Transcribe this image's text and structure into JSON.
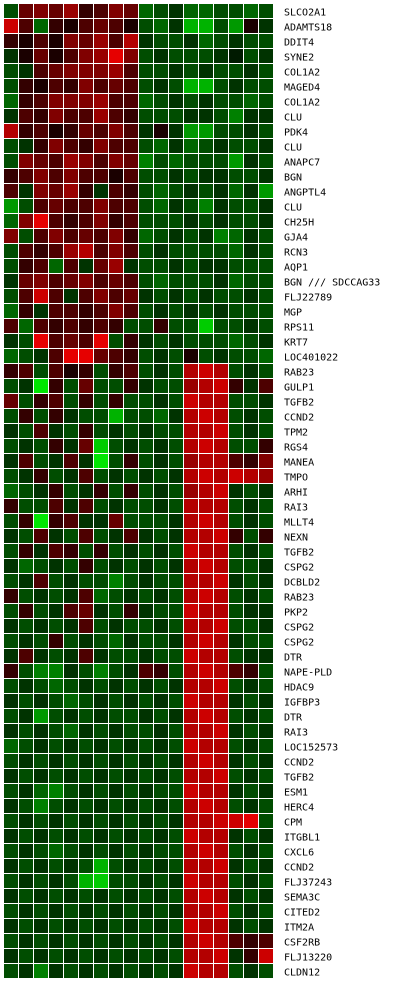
{
  "chart_data": {
    "type": "heatmap",
    "title": "",
    "xlabel": "",
    "ylabel": "",
    "columns": 18,
    "rows": [
      "SLCO2A1",
      "ADAMTS18",
      "DDIT4",
      "SYNE2",
      "COL1A2",
      "MAGED4",
      "COL1A2",
      "CLU",
      "PDK4",
      "CLU",
      "ANAPC7",
      "BGN",
      "ANGPTL4",
      "CLU",
      "CH25H",
      "GJA4",
      "RCN3",
      "AQP1",
      "BGN /// SDCCAG33",
      "FLJ22789",
      "MGP",
      "RPS11",
      "KRT7",
      "LOC401022",
      "RAB23",
      "GULP1",
      "TGFB2",
      "CCND2",
      "TPM2",
      "RGS4",
      "MANEA",
      "TMPO",
      "ARHI",
      "RAI3",
      "MLLT4",
      "NEXN",
      "TGFB2",
      "CSPG2",
      "DCBLD2",
      "RAB23",
      "PKP2",
      "CSPG2",
      "CSPG2",
      "DTR",
      "NAPE-PLD",
      "HDAC9",
      "IGFBP3",
      "DTR",
      "RAI3",
      "LOC152573",
      "CCND2",
      "TGFB2",
      "ESM1",
      "HERC4",
      "CPM",
      "ITGBL1",
      "CXCL6",
      "CCND2",
      "FLJ37243",
      "SEMA3C",
      "CITED2",
      "ITM2A",
      "CSF2RB",
      "FLJ13220",
      "CLDN12"
    ],
    "value_range": [
      -1,
      1
    ],
    "color_scale": {
      "negative": "#00ff00",
      "zero": "#000000",
      "positive": "#ff0000"
    },
    "grid": true,
    "values": [
      [
        -0.3,
        0.4,
        0.5,
        0.4,
        0.6,
        0.2,
        0.3,
        0.5,
        0.4,
        -0.4,
        -0.3,
        -0.2,
        -0.4,
        -0.4,
        -0.3,
        -0.3,
        -0.4,
        -0.3
      ],
      [
        0.8,
        0.3,
        -0.4,
        0.2,
        0.1,
        0.3,
        0.4,
        0.3,
        0.1,
        -0.3,
        -0.4,
        -0.2,
        -0.7,
        -0.7,
        -0.3,
        -0.6,
        0.1,
        -0.2
      ],
      [
        0.2,
        0.1,
        0.3,
        0.1,
        0.5,
        0.4,
        0.6,
        0.3,
        0.7,
        -0.2,
        -0.3,
        -0.3,
        -0.2,
        -0.4,
        -0.3,
        -0.2,
        -0.3,
        -0.3
      ],
      [
        -0.2,
        0.1,
        0.4,
        0.1,
        0.3,
        0.5,
        0.6,
        0.9,
        0.5,
        -0.3,
        -0.2,
        -0.3,
        -0.3,
        -0.3,
        -0.2,
        -0.1,
        -0.3,
        -0.2
      ],
      [
        -0.3,
        -0.2,
        0.3,
        0.4,
        0.5,
        0.5,
        0.5,
        0.6,
        0.3,
        -0.3,
        -0.3,
        -0.2,
        -0.3,
        -0.2,
        -0.3,
        -0.3,
        -0.2,
        -0.3
      ],
      [
        -0.3,
        0.2,
        0.1,
        0.3,
        0.2,
        0.5,
        0.3,
        0.4,
        0.3,
        -0.3,
        -0.2,
        -0.3,
        -0.7,
        -0.7,
        -0.3,
        -0.2,
        -0.3,
        -0.3
      ],
      [
        -0.4,
        0.2,
        0.3,
        0.5,
        0.5,
        0.5,
        0.6,
        0.3,
        0.3,
        -0.4,
        -0.3,
        -0.2,
        -0.3,
        -0.2,
        -0.3,
        -0.3,
        -0.4,
        -0.3
      ],
      [
        -0.2,
        0.3,
        0.2,
        0.5,
        0.3,
        0.3,
        0.6,
        0.3,
        0.2,
        -0.3,
        -0.3,
        -0.3,
        -0.2,
        -0.2,
        -0.3,
        -0.5,
        -0.2,
        -0.2
      ],
      [
        0.7,
        0.2,
        0.3,
        0.1,
        0.2,
        0.4,
        0.3,
        0.5,
        0.3,
        -0.2,
        0.1,
        -0.2,
        -0.6,
        -0.6,
        -0.3,
        -0.3,
        -0.2,
        -0.3
      ],
      [
        -0.3,
        -0.2,
        0.2,
        0.5,
        0.3,
        0.2,
        0.5,
        0.3,
        0.3,
        -0.3,
        -0.4,
        -0.2,
        -0.4,
        -0.3,
        -0.2,
        -0.3,
        -0.3,
        -0.2
      ],
      [
        -0.3,
        0.5,
        0.4,
        0.3,
        0.6,
        0.5,
        0.3,
        0.5,
        0.4,
        -0.5,
        -0.3,
        -0.4,
        -0.3,
        -0.3,
        -0.3,
        -0.6,
        -0.2,
        -0.3
      ],
      [
        0.2,
        0.3,
        0.5,
        0.3,
        0.5,
        0.3,
        0.3,
        0.1,
        0.3,
        -0.3,
        -0.3,
        -0.2,
        -0.3,
        -0.2,
        -0.2,
        -0.3,
        -0.3,
        -0.2
      ],
      [
        0.3,
        -0.2,
        0.5,
        0.4,
        0.6,
        0.2,
        -0.2,
        0.3,
        0.2,
        -0.3,
        -0.4,
        -0.3,
        -0.2,
        -0.3,
        -0.2,
        -0.4,
        -0.2,
        -0.6
      ],
      [
        -0.6,
        -0.3,
        0.3,
        0.4,
        0.3,
        0.3,
        0.5,
        0.3,
        0.3,
        -0.3,
        -0.4,
        -0.2,
        -0.3,
        -0.5,
        -0.2,
        -0.3,
        -0.3,
        -0.2
      ],
      [
        -0.4,
        0.5,
        0.9,
        0.3,
        0.2,
        0.3,
        0.5,
        0.2,
        0.3,
        -0.3,
        -0.3,
        -0.3,
        -0.2,
        -0.3,
        -0.2,
        -0.3,
        -0.3,
        -0.2
      ],
      [
        0.5,
        -0.3,
        0.3,
        0.5,
        0.3,
        0.4,
        0.3,
        0.5,
        0.2,
        -0.4,
        -0.3,
        -0.2,
        -0.3,
        -0.2,
        -0.5,
        -0.4,
        -0.2,
        -0.3
      ],
      [
        -0.3,
        0.3,
        0.2,
        0.3,
        0.6,
        0.7,
        0.3,
        0.5,
        0.3,
        -0.3,
        -0.2,
        -0.3,
        -0.3,
        -0.3,
        -0.3,
        -0.4,
        -0.2,
        -0.3
      ],
      [
        -0.3,
        0.2,
        0.3,
        -0.4,
        0.3,
        -0.2,
        0.4,
        0.6,
        -0.2,
        -0.3,
        -0.3,
        -0.2,
        -0.3,
        -0.2,
        -0.2,
        -0.3,
        -0.3,
        -0.3
      ],
      [
        -0.2,
        0.4,
        0.5,
        0.3,
        0.4,
        0.5,
        0.3,
        0.4,
        0.3,
        -0.3,
        -0.4,
        -0.3,
        -0.3,
        -0.3,
        -0.2,
        -0.4,
        -0.3,
        -0.3
      ],
      [
        -0.3,
        0.3,
        0.8,
        0.3,
        -0.2,
        0.3,
        0.5,
        0.3,
        0.4,
        -0.2,
        -0.3,
        -0.2,
        -0.3,
        -0.2,
        -0.3,
        -0.3,
        -0.2,
        -0.3
      ],
      [
        -0.4,
        0.2,
        -0.2,
        0.3,
        0.3,
        0.2,
        0.3,
        0.5,
        0.3,
        -0.3,
        -0.2,
        -0.3,
        -0.2,
        -0.3,
        -0.2,
        -0.3,
        -0.3,
        -0.3
      ],
      [
        0.3,
        -0.4,
        0.3,
        0.2,
        0.3,
        0.2,
        0.3,
        0.2,
        -0.3,
        -0.3,
        0.2,
        -0.3,
        -0.3,
        -0.8,
        -0.3,
        -0.3,
        -0.2,
        -0.3
      ],
      [
        -0.2,
        -0.3,
        0.9,
        0.3,
        0.4,
        0.3,
        0.9,
        -0.3,
        0.2,
        -0.2,
        -0.3,
        -0.2,
        -0.3,
        -0.3,
        -0.3,
        -0.4,
        -0.3,
        -0.2
      ],
      [
        -0.4,
        -0.3,
        -0.2,
        0.3,
        0.9,
        0.9,
        0.4,
        0.3,
        0.2,
        -0.3,
        -0.2,
        -0.3,
        0.1,
        -0.3,
        -0.2,
        -0.3,
        -0.3,
        -0.4
      ],
      [
        0.2,
        0.3,
        -0.3,
        0.3,
        0.1,
        0.2,
        -0.3,
        0.2,
        0.3,
        -0.3,
        -0.2,
        -0.3,
        0.7,
        0.8,
        0.7,
        -0.3,
        -0.2,
        -0.3
      ],
      [
        -0.3,
        -0.2,
        -0.9,
        0.2,
        -0.3,
        0.4,
        -0.3,
        -0.3,
        0.2,
        -0.2,
        -0.3,
        -0.3,
        0.6,
        0.7,
        0.8,
        0.2,
        -0.2,
        0.3
      ],
      [
        0.4,
        -0.3,
        0.2,
        0.3,
        -0.3,
        0.2,
        -0.3,
        0.2,
        -0.3,
        -0.3,
        -0.2,
        -0.3,
        0.8,
        0.7,
        0.7,
        -0.3,
        -0.3,
        -0.2
      ],
      [
        -0.3,
        0.2,
        -0.3,
        0.2,
        -0.2,
        -0.3,
        -0.3,
        -0.7,
        -0.3,
        -0.3,
        -0.4,
        -0.2,
        0.7,
        0.8,
        0.7,
        -0.3,
        -0.2,
        -0.3
      ],
      [
        -0.2,
        -0.3,
        0.3,
        -0.2,
        -0.3,
        0.2,
        -0.3,
        -0.2,
        -0.3,
        -0.2,
        -0.3,
        -0.3,
        0.7,
        0.7,
        0.8,
        -0.3,
        -0.2,
        -0.3
      ],
      [
        -0.3,
        -0.2,
        -0.3,
        0.2,
        -0.2,
        0.4,
        -0.8,
        -0.3,
        -0.2,
        -0.3,
        -0.2,
        -0.3,
        0.7,
        0.8,
        0.7,
        -0.3,
        -0.3,
        0.2
      ],
      [
        -0.2,
        0.3,
        -0.3,
        -0.2,
        0.3,
        -0.2,
        -0.9,
        -0.3,
        0.2,
        -0.3,
        -0.2,
        -0.3,
        0.6,
        0.7,
        0.7,
        0.3,
        0.2,
        0.5
      ],
      [
        -0.3,
        -0.2,
        0.2,
        -0.3,
        -0.2,
        0.3,
        -0.3,
        -0.2,
        -0.3,
        -0.2,
        -0.3,
        -0.2,
        0.7,
        0.8,
        0.7,
        0.8,
        0.7,
        0.6
      ],
      [
        -0.4,
        -0.3,
        -0.2,
        0.2,
        -0.3,
        -0.2,
        0.2,
        -0.3,
        0.2,
        -0.3,
        -0.2,
        -0.3,
        0.6,
        0.7,
        0.8,
        -0.2,
        -0.3,
        -0.2
      ],
      [
        0.2,
        -0.3,
        -0.3,
        0.3,
        -0.2,
        0.3,
        -0.3,
        -0.2,
        -0.3,
        -0.3,
        -0.2,
        -0.3,
        0.7,
        0.7,
        0.7,
        -0.3,
        -0.2,
        -0.3
      ],
      [
        -0.3,
        0.2,
        -0.9,
        0.2,
        0.3,
        -0.2,
        -0.2,
        0.4,
        -0.3,
        -0.3,
        -0.3,
        -0.2,
        0.7,
        0.8,
        0.7,
        -0.3,
        -0.2,
        -0.3
      ],
      [
        -0.2,
        -0.3,
        0.3,
        -0.2,
        -0.3,
        0.3,
        -0.3,
        -0.2,
        0.3,
        -0.2,
        -0.3,
        -0.2,
        0.7,
        0.7,
        0.8,
        0.2,
        -0.3,
        0.2
      ],
      [
        -0.3,
        0.2,
        -0.2,
        0.3,
        0.2,
        -0.3,
        0.2,
        -0.3,
        -0.2,
        -0.3,
        -0.2,
        -0.3,
        0.8,
        0.7,
        0.7,
        -0.3,
        -0.2,
        -0.3
      ],
      [
        -0.2,
        -0.4,
        -0.3,
        -0.2,
        -0.3,
        0.2,
        -0.3,
        -0.2,
        -0.3,
        -0.2,
        -0.3,
        -0.2,
        0.7,
        0.8,
        0.7,
        -0.3,
        -0.3,
        -0.2
      ],
      [
        -0.3,
        -0.2,
        0.3,
        -0.3,
        -0.2,
        -0.3,
        -0.3,
        -0.5,
        -0.3,
        -0.2,
        -0.3,
        -0.3,
        0.7,
        0.7,
        0.8,
        -0.2,
        -0.3,
        -0.2
      ],
      [
        0.2,
        -0.3,
        -0.2,
        -0.3,
        -0.2,
        0.3,
        -0.4,
        -0.3,
        -0.2,
        -0.3,
        -0.2,
        -0.3,
        0.7,
        0.8,
        0.7,
        -0.3,
        -0.2,
        -0.3
      ],
      [
        -0.3,
        0.2,
        -0.3,
        -0.2,
        0.3,
        0.4,
        -0.2,
        -0.3,
        0.2,
        -0.2,
        -0.3,
        -0.3,
        0.8,
        0.7,
        0.7,
        -0.3,
        -0.2,
        -0.2
      ],
      [
        -0.2,
        -0.3,
        -0.2,
        -0.3,
        -0.2,
        0.3,
        -0.3,
        -0.2,
        -0.3,
        -0.3,
        -0.2,
        -0.3,
        0.7,
        0.7,
        0.8,
        -0.3,
        -0.3,
        -0.2
      ],
      [
        -0.3,
        -0.2,
        -0.3,
        0.2,
        -0.3,
        -0.2,
        -0.3,
        -0.4,
        -0.2,
        -0.3,
        -0.3,
        -0.2,
        0.7,
        0.8,
        0.7,
        -0.2,
        -0.3,
        -0.3
      ],
      [
        -0.2,
        0.3,
        -0.2,
        -0.3,
        -0.2,
        0.3,
        -0.2,
        -0.3,
        -0.3,
        -0.2,
        -0.3,
        -0.3,
        0.8,
        0.7,
        0.7,
        -0.3,
        -0.2,
        -0.2
      ],
      [
        0.2,
        -0.3,
        -0.5,
        -0.5,
        -0.2,
        -0.3,
        -0.5,
        -0.3,
        -0.2,
        0.3,
        0.2,
        -0.3,
        0.7,
        0.8,
        0.7,
        0.3,
        0.2,
        -0.3
      ],
      [
        -0.3,
        -0.2,
        -0.3,
        -0.4,
        -0.3,
        -0.2,
        -0.3,
        -0.2,
        -0.3,
        -0.2,
        -0.3,
        -0.2,
        0.7,
        0.7,
        0.8,
        -0.3,
        -0.2,
        -0.3
      ],
      [
        -0.2,
        -0.3,
        -0.2,
        -0.3,
        -0.4,
        -0.3,
        -0.2,
        -0.3,
        -0.2,
        -0.3,
        -0.2,
        -0.3,
        0.8,
        0.7,
        0.7,
        -0.2,
        -0.3,
        -0.2
      ],
      [
        -0.3,
        -0.2,
        -0.6,
        -0.3,
        -0.2,
        -0.3,
        -0.2,
        -0.3,
        -0.3,
        -0.2,
        -0.3,
        -0.2,
        0.7,
        0.8,
        0.7,
        -0.3,
        -0.2,
        -0.3
      ],
      [
        -0.2,
        -0.3,
        -0.2,
        -0.3,
        -0.4,
        -0.2,
        -0.3,
        -0.2,
        -0.3,
        -0.3,
        -0.2,
        -0.3,
        0.7,
        0.7,
        0.8,
        -0.2,
        -0.3,
        -0.2
      ],
      [
        -0.4,
        -0.3,
        -0.2,
        -0.3,
        -0.2,
        -0.3,
        -0.2,
        -0.3,
        -0.2,
        -0.3,
        -0.2,
        -0.3,
        0.8,
        0.7,
        0.7,
        -0.3,
        -0.2,
        -0.3
      ],
      [
        -0.3,
        -0.2,
        -0.3,
        -0.2,
        -0.3,
        -0.2,
        -0.3,
        -0.2,
        -0.3,
        -0.2,
        -0.3,
        -0.2,
        0.7,
        0.8,
        0.7,
        -0.2,
        -0.3,
        -0.2
      ],
      [
        -0.2,
        -0.3,
        -0.2,
        -0.3,
        -0.2,
        -0.3,
        -0.2,
        -0.3,
        -0.2,
        -0.3,
        -0.2,
        -0.3,
        0.7,
        0.7,
        0.8,
        -0.3,
        -0.2,
        -0.3
      ],
      [
        -0.3,
        -0.2,
        -0.4,
        -0.5,
        -0.3,
        -0.2,
        -0.3,
        -0.2,
        -0.3,
        -0.2,
        -0.3,
        -0.3,
        0.8,
        0.7,
        0.7,
        -0.2,
        -0.3,
        -0.2
      ],
      [
        -0.2,
        -0.3,
        -0.5,
        -0.3,
        -0.2,
        -0.3,
        -0.2,
        -0.3,
        -0.2,
        -0.3,
        -0.2,
        -0.3,
        0.7,
        0.8,
        0.7,
        -0.3,
        -0.2,
        -0.3
      ],
      [
        -0.3,
        -0.2,
        -0.3,
        -0.2,
        -0.3,
        -0.2,
        -0.3,
        -0.2,
        -0.3,
        -0.2,
        -0.3,
        -0.2,
        0.7,
        0.7,
        0.8,
        0.8,
        0.9,
        -0.3
      ],
      [
        -0.2,
        -0.3,
        -0.2,
        -0.3,
        -0.2,
        -0.3,
        -0.2,
        -0.3,
        -0.2,
        -0.3,
        -0.2,
        -0.3,
        0.8,
        0.7,
        0.7,
        -0.2,
        -0.3,
        -0.2
      ],
      [
        -0.3,
        -0.2,
        -0.3,
        -0.4,
        -0.3,
        -0.2,
        -0.3,
        -0.2,
        -0.3,
        -0.2,
        -0.3,
        -0.3,
        0.7,
        0.8,
        0.7,
        -0.3,
        -0.2,
        -0.3
      ],
      [
        -0.2,
        -0.3,
        -0.2,
        -0.3,
        -0.2,
        -0.3,
        -0.7,
        -0.3,
        -0.2,
        -0.3,
        -0.2,
        -0.3,
        0.7,
        0.7,
        0.8,
        -0.2,
        -0.3,
        -0.2
      ],
      [
        -0.3,
        -0.2,
        -0.3,
        -0.2,
        -0.3,
        -0.7,
        -0.8,
        -0.3,
        -0.3,
        -0.2,
        -0.3,
        -0.2,
        0.8,
        0.7,
        0.7,
        -0.3,
        -0.2,
        -0.3
      ],
      [
        -0.2,
        -0.3,
        -0.2,
        -0.3,
        -0.2,
        -0.3,
        -0.2,
        -0.3,
        -0.2,
        -0.3,
        -0.2,
        -0.3,
        0.7,
        0.8,
        0.7,
        -0.2,
        -0.3,
        -0.2
      ],
      [
        -0.3,
        -0.2,
        -0.3,
        -0.2,
        -0.3,
        -0.2,
        -0.3,
        -0.2,
        -0.3,
        -0.2,
        -0.3,
        -0.2,
        0.7,
        0.7,
        0.8,
        -0.3,
        -0.2,
        -0.3
      ],
      [
        -0.2,
        -0.3,
        -0.2,
        -0.3,
        -0.2,
        -0.3,
        -0.2,
        -0.3,
        -0.2,
        -0.3,
        -0.2,
        -0.3,
        0.8,
        0.7,
        0.7,
        -0.2,
        -0.3,
        -0.2
      ],
      [
        -0.3,
        -0.2,
        -0.3,
        -0.2,
        -0.3,
        -0.2,
        -0.3,
        -0.2,
        -0.3,
        -0.2,
        -0.3,
        -0.2,
        0.7,
        0.8,
        0.7,
        0.3,
        0.2,
        0.3
      ],
      [
        -0.2,
        -0.3,
        -0.2,
        -0.3,
        -0.2,
        -0.3,
        -0.2,
        -0.3,
        -0.2,
        -0.3,
        -0.2,
        -0.3,
        0.7,
        0.7,
        0.8,
        -0.2,
        0.2,
        0.8
      ],
      [
        -0.3,
        -0.2,
        -0.5,
        -0.2,
        -0.3,
        -0.2,
        -0.3,
        -0.2,
        -0.3,
        -0.2,
        -0.3,
        -0.2,
        0.8,
        0.7,
        0.7,
        -0.3,
        -0.2,
        -0.3
      ]
    ]
  }
}
